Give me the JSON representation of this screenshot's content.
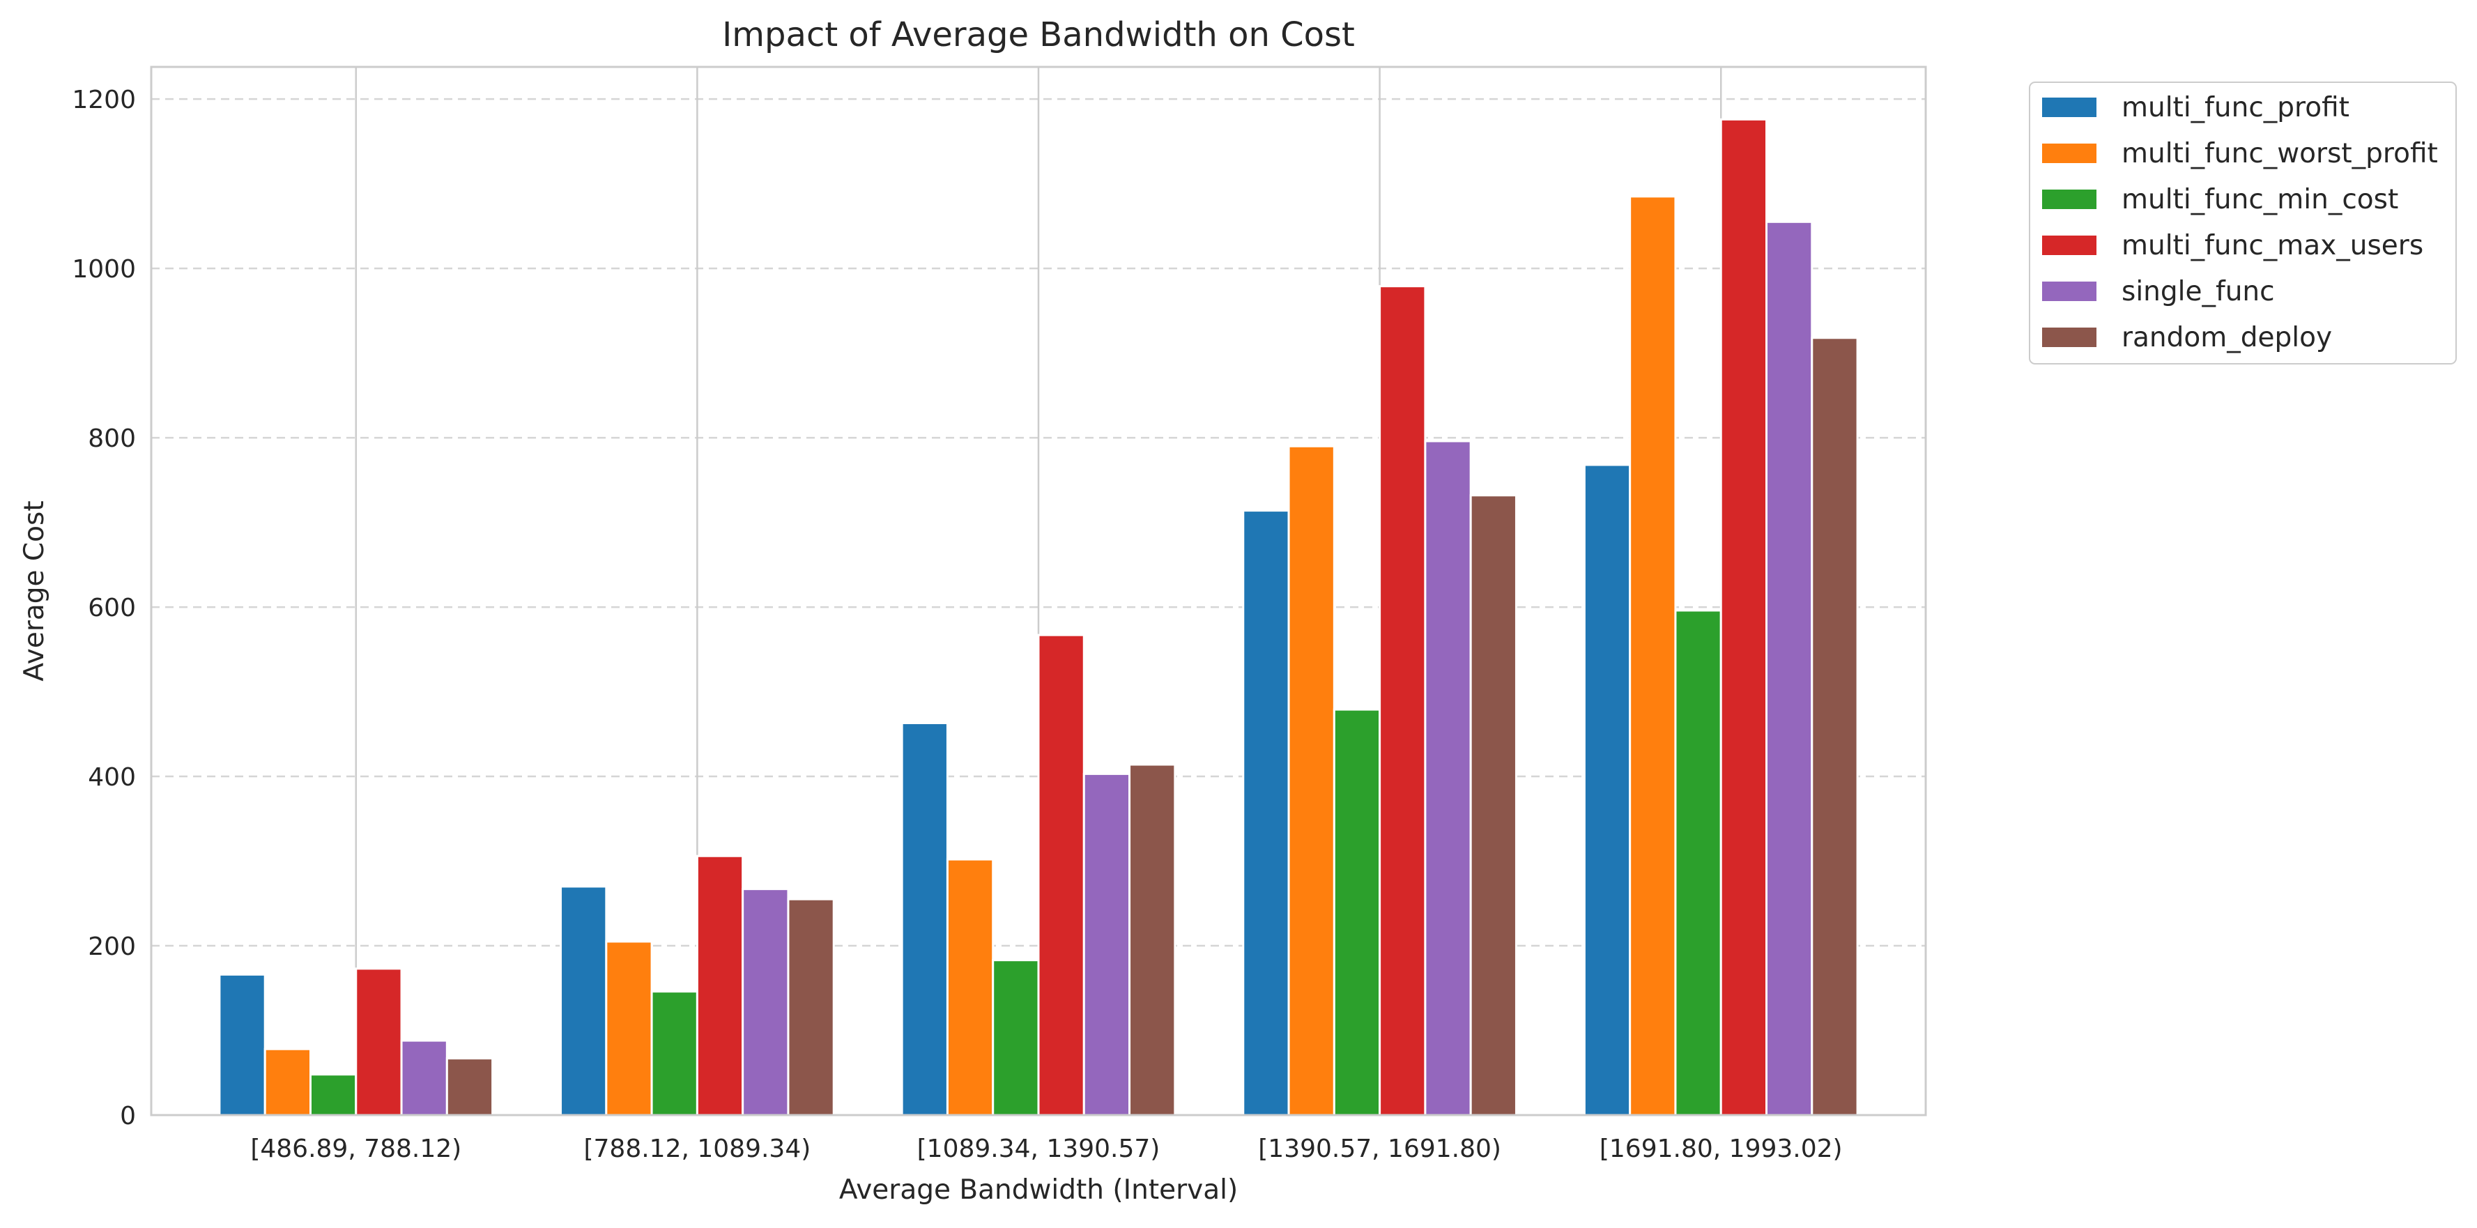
{
  "chart_data": {
    "type": "bar",
    "title": "Impact of Average Bandwidth on Cost",
    "xlabel": "Average Bandwidth (Interval)",
    "ylabel": "Average Cost",
    "categories": [
      "[486.89, 788.12)",
      "[788.12, 1089.34)",
      "[1089.34, 1390.57)",
      "[1390.57, 1691.80)",
      "[1691.80, 1993.02)"
    ],
    "series": [
      {
        "name": "multi_func_profit",
        "color": "#1f77b4",
        "values": [
          166,
          270,
          463,
          714,
          768
        ]
      },
      {
        "name": "multi_func_worst_profit",
        "color": "#ff7f0e",
        "values": [
          78,
          205,
          302,
          790,
          1085
        ]
      },
      {
        "name": "multi_func_min_cost",
        "color": "#2ca02c",
        "values": [
          48,
          146,
          183,
          479,
          596
        ]
      },
      {
        "name": "multi_func_max_users",
        "color": "#d62728",
        "values": [
          173,
          306,
          567,
          979,
          1176
        ]
      },
      {
        "name": "single_func",
        "color": "#9467bd",
        "values": [
          88,
          267,
          403,
          796,
          1055
        ]
      },
      {
        "name": "random_deploy",
        "color": "#8c564b",
        "values": [
          67,
          255,
          414,
          732,
          918
        ]
      }
    ],
    "ylim": [
      0,
      1238
    ],
    "yticks": [
      0,
      200,
      400,
      600,
      800,
      1000,
      1200
    ],
    "grid": {
      "y": true,
      "y_style": "dashed",
      "x": true
    },
    "legend_position": "outside-top-right"
  }
}
